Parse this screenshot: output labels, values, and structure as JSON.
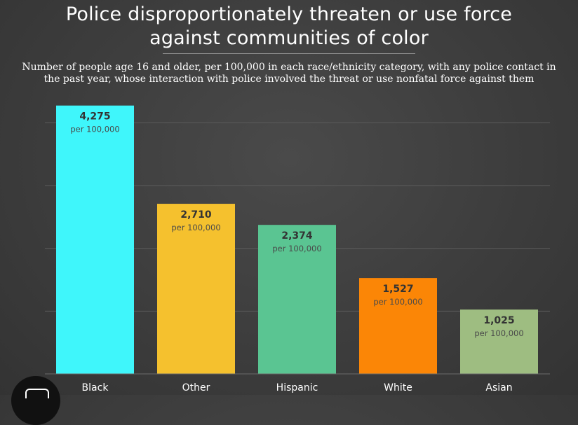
{
  "chart_data": {
    "type": "bar",
    "title": "Police disproportionately threaten or use force against communities of color",
    "title_lines": [
      "Police disproportionately threaten or use force",
      "against communities of color"
    ],
    "subtitle_lines": [
      "Number of people age 16 and older, per 100,000 in each race/ethnicity category, with any police contact in",
      "the past year, whose interaction with police involved the threat or use nonfatal force against them"
    ],
    "categories": [
      "Black",
      "Other",
      "Hispanic",
      "White",
      "Asian"
    ],
    "values": [
      4275,
      2710,
      2374,
      1527,
      1025
    ],
    "value_labels": [
      "4,275",
      "2,710",
      "2,374",
      "1,527",
      "1,025"
    ],
    "unit_label": "per 100,000",
    "colors": [
      "#3ff6fb",
      "#f5c12e",
      "#5ac592",
      "#fb8606",
      "#9ebd81"
    ],
    "ylim": [
      0,
      4500
    ],
    "gridlines": [
      0,
      1000,
      2000,
      3000,
      4000
    ],
    "grid": true,
    "xlabel": "",
    "ylabel": ""
  }
}
